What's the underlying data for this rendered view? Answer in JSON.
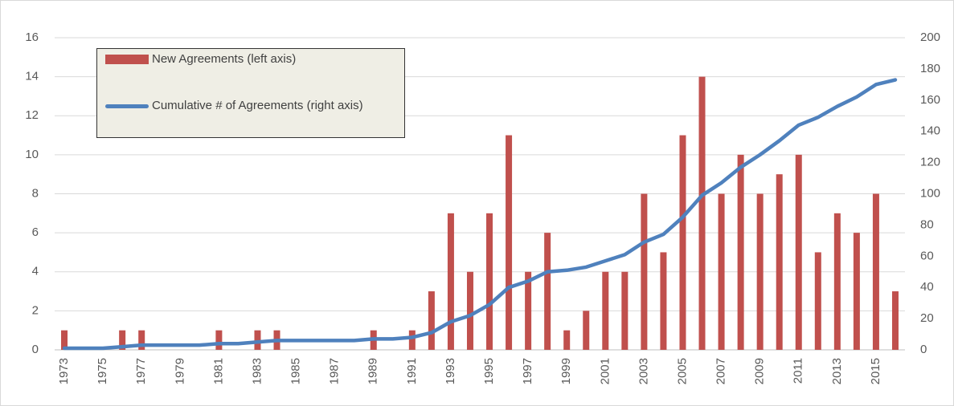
{
  "chart_data": {
    "type": "bar_line",
    "categories": [
      "1973",
      null,
      "1975",
      null,
      "1977",
      null,
      "1979",
      null,
      "1981",
      null,
      "1983",
      null,
      "1985",
      null,
      "1987",
      null,
      "1989",
      null,
      "1991",
      null,
      "1993",
      null,
      "1995",
      null,
      "1997",
      null,
      "1999",
      null,
      "2001",
      null,
      "2003",
      null,
      "2005",
      null,
      "2007",
      null,
      "2009",
      null,
      "2011",
      null,
      "2013",
      null,
      "2015",
      null
    ],
    "series": [
      {
        "name": "New Agreements (left axis)",
        "type": "bar",
        "color": "#c0504d",
        "values": [
          1,
          0,
          0,
          1,
          1,
          0,
          0,
          0,
          1,
          0,
          1,
          1,
          0,
          0,
          0,
          0,
          1,
          0,
          1,
          3,
          7,
          4,
          7,
          11,
          4,
          6,
          1,
          2,
          4,
          4,
          8,
          5,
          11,
          14,
          8,
          10,
          8,
          9,
          10,
          5,
          7,
          6,
          8,
          3
        ]
      },
      {
        "name": "Cumulative # of Agreements (right axis)",
        "type": "line",
        "axis": "y2",
        "color": "#4f81bd",
        "values": [
          1,
          1,
          1,
          2,
          3,
          3,
          3,
          3,
          4,
          4,
          5,
          6,
          6,
          6,
          6,
          6,
          7,
          7,
          8,
          11,
          18,
          22,
          29,
          40,
          44,
          50,
          51,
          53,
          57,
          61,
          69,
          74,
          85,
          99,
          107,
          117,
          125,
          134,
          144,
          149,
          156,
          162,
          170,
          173
        ]
      }
    ],
    "ylim": [
      0,
      16
    ],
    "yticks": [
      0,
      2,
      4,
      6,
      8,
      10,
      12,
      14,
      16
    ],
    "y2lim": [
      0,
      200
    ],
    "y2ticks": [
      0,
      20,
      40,
      60,
      80,
      100,
      120,
      140,
      160,
      180,
      200
    ],
    "grid": true,
    "legend": "top-left"
  }
}
